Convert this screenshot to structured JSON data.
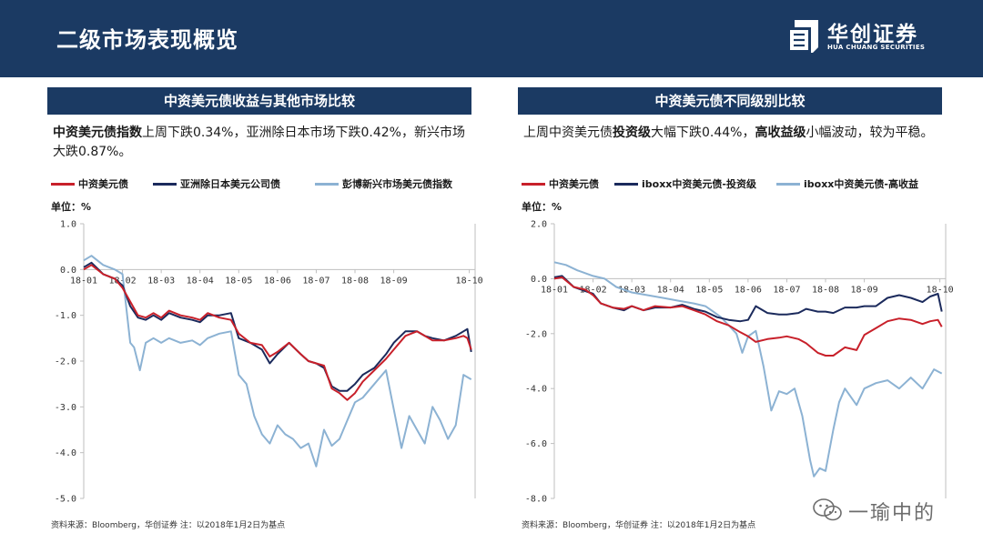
{
  "header": {
    "title": "二级市场表现概览",
    "brand_cn": "华创证券",
    "brand_en": "HUA CHUANG SECURITIES"
  },
  "colors": {
    "header_bg": "#1b3a63",
    "series_red": "#c8202a",
    "series_navy": "#1b2a5c",
    "series_lightblue": "#8cb2d3"
  },
  "panels": [
    {
      "title": "中资美元债收益与其他市场比较",
      "desc_bold": "中资美元债指数",
      "desc_rest": "上周下跌0.34%，亚洲除日本市场下跌0.42%，新兴市场大跌0.87%。",
      "unit": "单位：%",
      "source": "资料来源：Bloomberg，华创证券    注：以2018年1月2日为基点"
    },
    {
      "title": "中资美元债不同级别比较",
      "desc_p1": "上周中资美元债",
      "desc_b1": "投资级",
      "desc_p2": "大幅下跌0.44%，",
      "desc_b2": "高收益级",
      "desc_p3": "小幅波动，较为平稳。",
      "unit": "单位：%",
      "source": "资料来源：Bloomberg，华创证券    注：以2018年1月2日为基点"
    }
  ],
  "watermark": {
    "text": "一瑜中的",
    "icon": "wechat-icon"
  },
  "chart_data": [
    {
      "type": "line",
      "ylim": [
        -5.0,
        1.0
      ],
      "yticks": [
        1.0,
        0.0,
        -1.0,
        -2.0,
        -3.0,
        -4.0,
        -5.0
      ],
      "ytick_labels": [
        "1.0",
        "0.0",
        "-1.0",
        "-2.0",
        "-3.0",
        "-4.0",
        "-5.0"
      ],
      "xlim": [
        0,
        10.1
      ],
      "xticks": [
        0,
        1,
        2,
        3,
        4,
        5,
        6,
        7,
        8,
        9
      ],
      "xtick_labels": [
        "18-01",
        "18-02",
        "18-03",
        "18-04",
        "18-05",
        "18-06",
        "18-07",
        "18-08",
        "18-09",
        "18-10"
      ],
      "xtick_positions": [
        0,
        1,
        2,
        3,
        4,
        5,
        6,
        7,
        8,
        9.95
      ],
      "legend_position": "top",
      "series": [
        {
          "name": "中资美元债",
          "color": "#c8202a",
          "x": [
            0,
            0.2,
            0.5,
            0.8,
            1.0,
            1.2,
            1.4,
            1.6,
            1.8,
            2.0,
            2.2,
            2.5,
            2.8,
            3.0,
            3.2,
            3.5,
            3.8,
            4.0,
            4.3,
            4.6,
            4.8,
            5.0,
            5.3,
            5.6,
            5.8,
            6.0,
            6.2,
            6.4,
            6.6,
            6.8,
            7.0,
            7.2,
            7.5,
            7.8,
            8.0,
            8.3,
            8.6,
            8.8,
            9.0,
            9.3,
            9.6,
            9.8,
            9.9,
            10.0
          ],
          "y": [
            0.0,
            0.1,
            -0.1,
            -0.2,
            -0.4,
            -0.7,
            -1.0,
            -1.05,
            -0.95,
            -1.05,
            -0.9,
            -1.0,
            -1.05,
            -1.1,
            -0.95,
            -1.05,
            -1.1,
            -1.4,
            -1.6,
            -1.65,
            -1.9,
            -1.8,
            -1.6,
            -1.85,
            -2.0,
            -2.05,
            -2.1,
            -2.6,
            -2.7,
            -2.85,
            -2.7,
            -2.45,
            -2.2,
            -1.95,
            -1.75,
            -1.45,
            -1.35,
            -1.45,
            -1.55,
            -1.55,
            -1.5,
            -1.45,
            -1.5,
            -1.75
          ]
        },
        {
          "name": "亚洲除日本美元公司债",
          "color": "#1b2a5c",
          "x": [
            0,
            0.2,
            0.5,
            0.8,
            1.0,
            1.2,
            1.4,
            1.6,
            1.8,
            2.0,
            2.2,
            2.5,
            2.8,
            3.0,
            3.2,
            3.5,
            3.8,
            4.0,
            4.3,
            4.6,
            4.8,
            5.0,
            5.3,
            5.6,
            5.8,
            6.0,
            6.2,
            6.4,
            6.6,
            6.8,
            7.0,
            7.2,
            7.5,
            7.8,
            8.0,
            8.3,
            8.6,
            8.8,
            9.0,
            9.3,
            9.6,
            9.8,
            9.9,
            10.0
          ],
          "y": [
            0.05,
            0.15,
            -0.1,
            -0.2,
            -0.35,
            -0.8,
            -1.05,
            -1.1,
            -1.0,
            -1.1,
            -0.95,
            -1.05,
            -1.1,
            -1.15,
            -1.0,
            -1.0,
            -0.95,
            -1.5,
            -1.6,
            -1.75,
            -2.05,
            -1.85,
            -1.6,
            -1.85,
            -2.0,
            -2.05,
            -2.15,
            -2.55,
            -2.65,
            -2.65,
            -2.5,
            -2.3,
            -2.15,
            -1.85,
            -1.6,
            -1.35,
            -1.35,
            -1.45,
            -1.5,
            -1.55,
            -1.45,
            -1.35,
            -1.3,
            -1.8
          ]
        },
        {
          "name": "彭博新兴市场美元债指数",
          "color": "#8cb2d3",
          "x": [
            0,
            0.2,
            0.5,
            0.8,
            1.0,
            1.2,
            1.3,
            1.45,
            1.6,
            1.8,
            2.0,
            2.2,
            2.5,
            2.8,
            3.0,
            3.2,
            3.5,
            3.8,
            4.0,
            4.2,
            4.4,
            4.6,
            4.8,
            5.0,
            5.2,
            5.4,
            5.6,
            5.8,
            6.0,
            6.2,
            6.4,
            6.6,
            6.8,
            7.0,
            7.2,
            7.5,
            7.8,
            8.0,
            8.2,
            8.4,
            8.6,
            8.8,
            9.0,
            9.2,
            9.4,
            9.6,
            9.8,
            10.0
          ],
          "y": [
            0.2,
            0.3,
            0.1,
            0.0,
            -0.1,
            -1.6,
            -1.7,
            -2.2,
            -1.6,
            -1.5,
            -1.6,
            -1.5,
            -1.6,
            -1.55,
            -1.65,
            -1.5,
            -1.4,
            -1.35,
            -2.3,
            -2.5,
            -3.2,
            -3.6,
            -3.8,
            -3.4,
            -3.6,
            -3.7,
            -3.9,
            -3.8,
            -4.3,
            -3.5,
            -3.85,
            -3.7,
            -3.3,
            -2.9,
            -2.8,
            -2.5,
            -2.2,
            -3.05,
            -3.9,
            -3.2,
            -3.5,
            -3.8,
            -3.0,
            -3.3,
            -3.7,
            -3.4,
            -2.3,
            -2.4
          ]
        }
      ]
    },
    {
      "type": "line",
      "ylim": [
        -8.0,
        2.0
      ],
      "yticks": [
        2.0,
        0.0,
        -2.0,
        -4.0,
        -6.0,
        -8.0
      ],
      "ytick_labels": [
        "2.0",
        "0.0",
        "-2.0",
        "-4.0",
        "-6.0",
        "-8.0"
      ],
      "xlim": [
        0,
        10.1
      ],
      "xticks": [
        0,
        1,
        2,
        3,
        4,
        5,
        6,
        7,
        8,
        9
      ],
      "xtick_labels": [
        "18-01",
        "18-02",
        "18-03",
        "18-04",
        "18-05",
        "18-06",
        "18-07",
        "18-08",
        "18-09",
        "18-10"
      ],
      "xtick_positions": [
        0,
        1,
        2,
        3,
        4,
        5,
        6,
        7,
        8,
        9.95
      ],
      "legend_position": "top",
      "series": [
        {
          "name": "中资美元债",
          "color": "#c8202a",
          "x": [
            0,
            0.2,
            0.5,
            0.8,
            1.0,
            1.2,
            1.5,
            1.8,
            2.0,
            2.3,
            2.6,
            3.0,
            3.3,
            3.6,
            3.9,
            4.2,
            4.5,
            4.8,
            5.0,
            5.2,
            5.5,
            5.8,
            6.0,
            6.3,
            6.5,
            6.8,
            7.0,
            7.2,
            7.5,
            7.8,
            8.0,
            8.3,
            8.6,
            8.9,
            9.2,
            9.5,
            9.7,
            9.9,
            10.0
          ],
          "y": [
            0.0,
            0.05,
            -0.3,
            -0.4,
            -0.6,
            -0.9,
            -1.05,
            -1.1,
            -1.0,
            -1.15,
            -1.0,
            -1.05,
            -1.0,
            -1.15,
            -1.3,
            -1.55,
            -1.7,
            -1.95,
            -2.1,
            -2.3,
            -2.2,
            -2.15,
            -2.1,
            -2.2,
            -2.35,
            -2.7,
            -2.8,
            -2.8,
            -2.5,
            -2.6,
            -2.05,
            -1.8,
            -1.55,
            -1.45,
            -1.5,
            -1.65,
            -1.55,
            -1.5,
            -1.75
          ]
        },
        {
          "name": "iboxx中资美元债-投资级",
          "color": "#1b2a5c",
          "x": [
            0,
            0.2,
            0.5,
            0.8,
            1.0,
            1.2,
            1.5,
            1.8,
            2.0,
            2.3,
            2.6,
            3.0,
            3.3,
            3.6,
            3.9,
            4.2,
            4.5,
            4.8,
            5.0,
            5.2,
            5.5,
            5.8,
            6.0,
            6.3,
            6.5,
            6.8,
            7.0,
            7.2,
            7.5,
            7.8,
            8.0,
            8.3,
            8.6,
            8.9,
            9.2,
            9.5,
            9.7,
            9.9,
            10.0
          ],
          "y": [
            0.05,
            0.1,
            -0.3,
            -0.45,
            -0.55,
            -0.9,
            -1.05,
            -1.15,
            -1.0,
            -1.15,
            -1.05,
            -1.05,
            -0.95,
            -1.1,
            -1.2,
            -1.4,
            -1.5,
            -1.55,
            -1.5,
            -1.0,
            -1.25,
            -1.3,
            -1.3,
            -1.25,
            -1.1,
            -1.2,
            -1.2,
            -1.25,
            -1.05,
            -1.05,
            -1.0,
            -1.0,
            -0.7,
            -0.6,
            -0.7,
            -0.85,
            -0.65,
            -0.55,
            -1.2
          ]
        },
        {
          "name": "iboxx中资美元债-高收益",
          "color": "#8cb2d3",
          "x": [
            0,
            0.3,
            0.6,
            1.0,
            1.3,
            1.6,
            2.0,
            2.4,
            2.8,
            3.2,
            3.6,
            3.9,
            4.1,
            4.3,
            4.5,
            4.7,
            4.85,
            5.0,
            5.2,
            5.4,
            5.6,
            5.8,
            6.0,
            6.2,
            6.4,
            6.6,
            6.7,
            6.85,
            7.0,
            7.2,
            7.35,
            7.5,
            7.8,
            8.0,
            8.3,
            8.6,
            8.9,
            9.2,
            9.5,
            9.8,
            10.0
          ],
          "y": [
            0.6,
            0.5,
            0.3,
            0.1,
            0.0,
            -0.3,
            -0.5,
            -0.6,
            -0.7,
            -0.8,
            -0.9,
            -1.0,
            -1.2,
            -1.4,
            -1.7,
            -2.0,
            -2.7,
            -2.1,
            -1.9,
            -3.2,
            -4.8,
            -4.1,
            -4.2,
            -4.0,
            -5.0,
            -6.6,
            -7.2,
            -6.9,
            -7.0,
            -5.5,
            -4.5,
            -4.0,
            -4.6,
            -4.0,
            -3.8,
            -3.7,
            -4.0,
            -3.6,
            -4.0,
            -3.3,
            -3.45
          ]
        }
      ]
    }
  ]
}
